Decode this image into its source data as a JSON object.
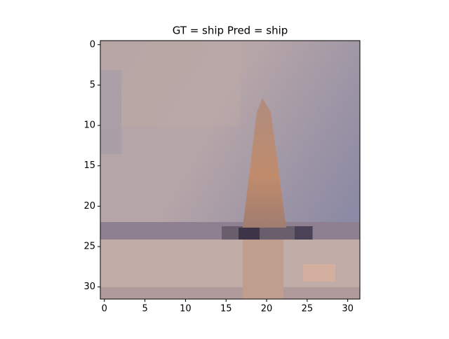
{
  "chart_data": {
    "type": "image",
    "title": "GT = ship Pred = ship",
    "xlim": [
      -0.5,
      31.5
    ],
    "ylim": [
      31.5,
      -0.5
    ],
    "xticks": [
      0,
      5,
      10,
      15,
      20,
      25,
      30
    ],
    "yticks": [
      0,
      5,
      10,
      15,
      20,
      25,
      30
    ]
  }
}
